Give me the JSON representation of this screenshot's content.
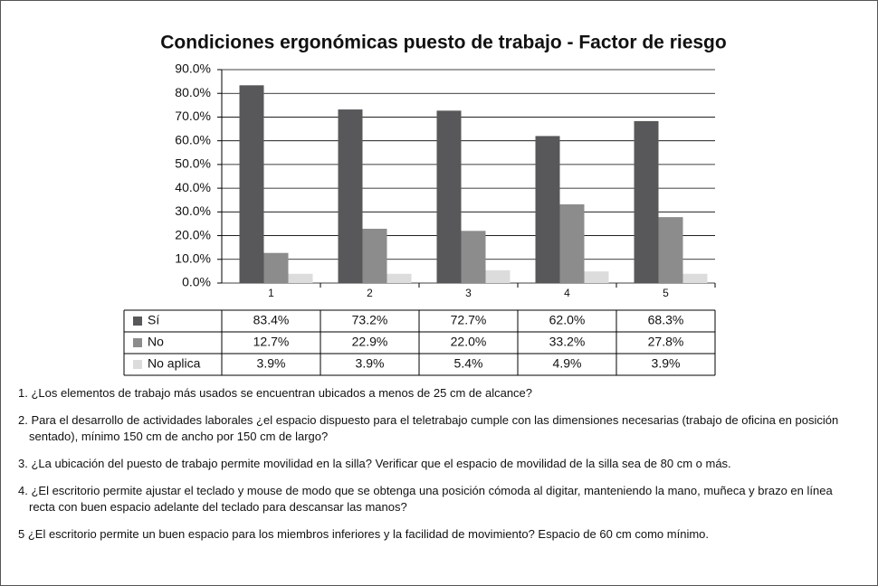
{
  "chart_data": {
    "type": "bar",
    "title": "Condiciones ergonómicas puesto de trabajo - Factor de riesgo",
    "categories": [
      "1",
      "2",
      "3",
      "4",
      "5"
    ],
    "series": [
      {
        "name": "Sí",
        "color": "#58585a",
        "values": [
          83.4,
          73.2,
          72.7,
          62.0,
          68.3
        ],
        "value_labels": [
          "83.4%",
          "73.2%",
          "72.7%",
          "62.0%",
          "68.3%"
        ]
      },
      {
        "name": "No",
        "color": "#8c8c8c",
        "values": [
          12.7,
          22.9,
          22.0,
          33.2,
          27.8
        ],
        "value_labels": [
          "12.7%",
          "22.9%",
          "22.0%",
          "33.2%",
          "27.8%"
        ]
      },
      {
        "name": "No aplica",
        "color": "#dcdcdc",
        "values": [
          3.9,
          3.9,
          5.4,
          4.9,
          3.9
        ],
        "value_labels": [
          "3.9%",
          "3.9%",
          "5.4%",
          "4.9%",
          "3.9%"
        ]
      }
    ],
    "ylim": [
      0,
      90
    ],
    "yticks": [
      {
        "value": 0,
        "label": "0.0%"
      },
      {
        "value": 10,
        "label": "10.0%"
      },
      {
        "value": 20,
        "label": "20.0%"
      },
      {
        "value": 30,
        "label": "30.0%"
      },
      {
        "value": 40,
        "label": "40.0%"
      },
      {
        "value": 50,
        "label": "50.0%"
      },
      {
        "value": 60,
        "label": "60.0%"
      },
      {
        "value": 70,
        "label": "70.0%"
      },
      {
        "value": 80,
        "label": "80.0%"
      },
      {
        "value": 90,
        "label": "90.0%"
      }
    ],
    "grid": true
  },
  "notes": [
    "1. ¿Los elementos de trabajo más usados se encuentran ubicados a menos de 25 cm de alcance?",
    "2. Para el desarrollo de actividades laborales ¿el espacio dispuesto para el teletrabajo cumple con las dimensiones necesarias (trabajo de oficina en posición sentado), mínimo 150 cm de ancho por 150 cm de largo?",
    "3. ¿La ubicación del puesto de trabajo permite movilidad en la silla? Verificar que el espacio de movilidad de la silla sea de 80 cm o más.",
    "4. ¿El escritorio permite ajustar el teclado y mouse de modo que se obtenga una posición cómoda al digitar, manteniendo la mano, muñeca y brazo en línea recta con buen espacio adelante del teclado para descansar las manos?",
    "5 ¿El escritorio permite un buen espacio para los miembros inferiores y la facilidad de movimiento? Espacio de 60 cm como mínimo."
  ]
}
